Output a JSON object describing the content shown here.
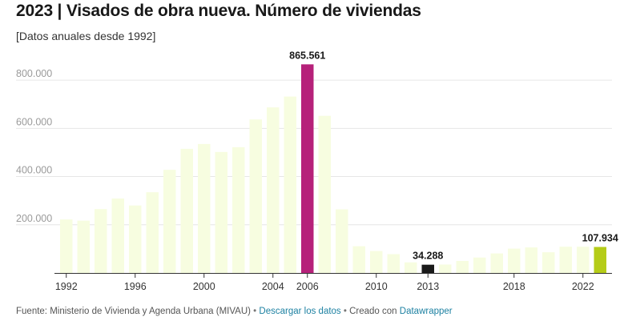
{
  "header": {
    "title": "2023 | Visados de obra nueva. Número de viviendas",
    "subtitle": "[Datos anuales desde 1992]"
  },
  "footer": {
    "source": "Fuente: Ministerio de Vivienda y Agenda Urbana (MIVAU)",
    "separator": " • ",
    "download_link": "Descargar los datos",
    "created_with": "Creado con",
    "datawrapper_link": "Datawrapper"
  },
  "chart_data": {
    "type": "bar",
    "title": "2023 | Visados de obra nueva. Número de viviendas",
    "subtitle": "[Datos anuales desde 1992]",
    "categories": [
      "1992",
      "1993",
      "1994",
      "1995",
      "1996",
      "1997",
      "1998",
      "1999",
      "2000",
      "2001",
      "2002",
      "2003",
      "2004",
      "2005",
      "2006",
      "2007",
      "2008",
      "2009",
      "2010",
      "2011",
      "2012",
      "2013",
      "2014",
      "2015",
      "2016",
      "2017",
      "2018",
      "2019",
      "2020",
      "2021",
      "2022",
      "2023"
    ],
    "values": [
      222000,
      217000,
      265000,
      309000,
      280000,
      335000,
      428000,
      515000,
      535000,
      502000,
      522000,
      637000,
      687000,
      732000,
      865561,
      652000,
      264000,
      111000,
      91000,
      78000,
      44000,
      34288,
      35000,
      50000,
      64000,
      81000,
      101000,
      106000,
      86000,
      109000,
      109000,
      107934
    ],
    "x_tick_labels": [
      "1992",
      "1996",
      "2000",
      "2004",
      "2006",
      "2010",
      "2013",
      "2018",
      "2022"
    ],
    "y_ticks": [
      200000,
      400000,
      600000,
      800000
    ],
    "y_tick_labels": [
      "200.000",
      "400.000",
      "600.000",
      "800.000"
    ],
    "ylim": [
      0,
      900000
    ],
    "grid": true,
    "highlights": [
      {
        "category": "2006",
        "label": "865.561",
        "color": "#b6217a"
      },
      {
        "category": "2013",
        "label": "34.288",
        "color": "#1a1a1a"
      },
      {
        "category": "2023",
        "label": "107.934",
        "color": "#b5cc18"
      }
    ],
    "colors": {
      "default_bar": "#f7fde0",
      "grid": "#e6e6e6",
      "axis": "#333333"
    }
  }
}
